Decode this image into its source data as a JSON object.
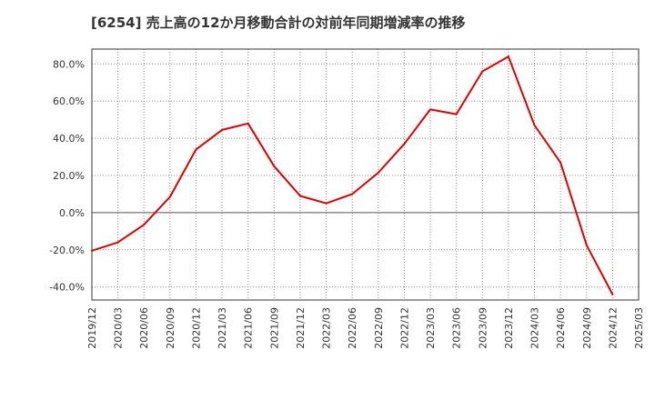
{
  "chart_data": {
    "type": "line",
    "title": "[6254]  売上高の12か月移動合計の対前年同期増減率の推移",
    "xlabel": "",
    "ylabel": "",
    "ylim": [
      -47,
      88
    ],
    "grid": true,
    "y_ticks": [
      80,
      60,
      40,
      20,
      0,
      -20,
      -40
    ],
    "y_tick_labels": [
      "80.0%",
      "60.0%",
      "40.0%",
      "20.0%",
      "0.0%",
      "-20.0%",
      "-40.0%"
    ],
    "x_tick_labels": [
      "2019/12",
      "2020/03",
      "2020/06",
      "2020/09",
      "2020/12",
      "2021/03",
      "2021/06",
      "2021/09",
      "2021/12",
      "2022/03",
      "2022/06",
      "2022/09",
      "2022/12",
      "2023/03",
      "2023/06",
      "2023/09",
      "2023/12",
      "2024/03",
      "2024/06",
      "2024/09",
      "2024/12",
      "2025/03"
    ],
    "series": [
      {
        "name": "対前年同期増減率",
        "color": "#e00000",
        "x": [
          "2019/12",
          "2020/03",
          "2020/06",
          "2020/09",
          "2020/12",
          "2021/03",
          "2021/06",
          "2021/09",
          "2021/12",
          "2022/03",
          "2022/06",
          "2022/09",
          "2022/12",
          "2023/03",
          "2023/06",
          "2023/09",
          "2023/12",
          "2024/03",
          "2024/06",
          "2024/09",
          "2024/12"
        ],
        "values": [
          -20.5,
          -16.0,
          -6.5,
          8.5,
          34.0,
          44.5,
          48.0,
          25.0,
          9.0,
          5.0,
          10.0,
          21.5,
          37.0,
          55.5,
          53.0,
          76.0,
          84.0,
          47.0,
          27.0,
          -17.5,
          -44.0
        ]
      }
    ]
  }
}
